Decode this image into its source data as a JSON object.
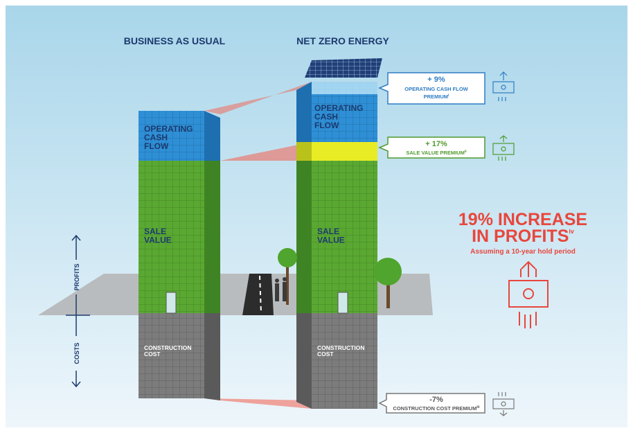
{
  "headings": {
    "left": "BUSINESS AS USUAL",
    "right": "NET ZERO ENERGY"
  },
  "left_building": {
    "operating_cash_flow": [
      "OPERATING",
      "CASH",
      "FLOW"
    ],
    "sale_value": [
      "SALE",
      "VALUE"
    ],
    "construction_cost": [
      "CONSTRUCTION",
      "COST"
    ]
  },
  "right_building": {
    "operating_cash_flow": [
      "OPERATING",
      "CASH",
      "FLOW"
    ],
    "sale_value": [
      "SALE",
      "VALUE"
    ],
    "construction_cost": [
      "CONSTRUCTION",
      "COST"
    ]
  },
  "callouts": [
    {
      "figure": "+ 9%",
      "lines": [
        "OPERATING CASH FLOW",
        "PREMIUM"
      ],
      "note": "i"
    },
    {
      "figure": "+ 17%",
      "lines": [
        "SALE VALUE PREMIUM"
      ],
      "note": "ii"
    },
    {
      "figure": "-7%",
      "lines": [
        "CONSTRUCTION COST PREMIUM"
      ],
      "note": "iii"
    }
  ],
  "headline": {
    "line1": "19% INCREASE",
    "line2": "IN PROFITS",
    "note": "iv",
    "subtitle": "Assuming a 10-year hold period"
  },
  "axis": {
    "up": "PROFITS",
    "down": "COSTS"
  }
}
